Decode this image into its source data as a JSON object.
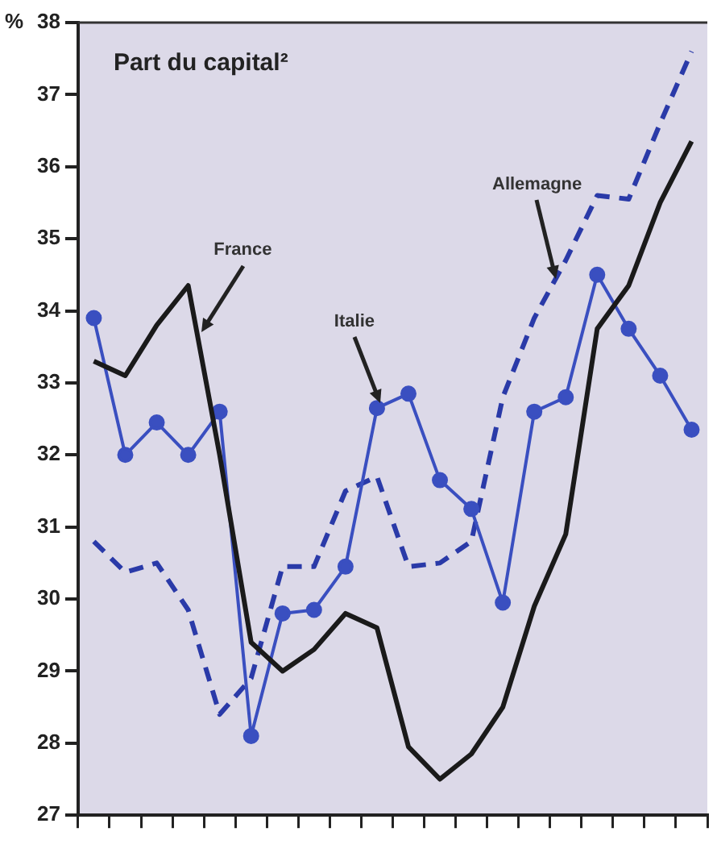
{
  "chart_data": {
    "type": "line",
    "title": "Part du capital²",
    "ylabel": "%",
    "categories": [
      null,
      null,
      null,
      null,
      null,
      null,
      null,
      null,
      null,
      null,
      null,
      null,
      null,
      null,
      null,
      null,
      null,
      null,
      null,
      null
    ],
    "series": [
      {
        "name": "France",
        "color": "#1a1a1a",
        "marker": "none",
        "line_style": "solid",
        "values": [
          33.3,
          33.1,
          33.8,
          34.35,
          32.0,
          29.4,
          29.0,
          29.3,
          29.8,
          29.6,
          27.95,
          27.5,
          27.85,
          28.5,
          29.9,
          30.9,
          33.75,
          34.35,
          35.5,
          36.35
        ]
      },
      {
        "name": "Italie",
        "color": "#3a4fc0",
        "marker": "circle",
        "line_style": "solid",
        "values": [
          33.9,
          32.0,
          32.45,
          32.0,
          32.6,
          28.1,
          29.8,
          29.85,
          30.45,
          32.65,
          32.85,
          31.65,
          31.25,
          29.95,
          32.6,
          32.8,
          34.5,
          33.75,
          33.1,
          32.35
        ]
      },
      {
        "name": "Allemagne",
        "color": "#2a3aa8",
        "marker": "none",
        "line_style": "dashed",
        "values": [
          30.8,
          30.37,
          30.5,
          29.85,
          28.4,
          28.9,
          30.45,
          30.45,
          31.5,
          31.7,
          30.45,
          30.5,
          30.8,
          32.8,
          33.9,
          34.7,
          35.6,
          35.55,
          36.6,
          37.6
        ]
      }
    ],
    "ylim": [
      27,
      38
    ],
    "yticks": [
      27,
      28,
      29,
      30,
      31,
      32,
      33,
      34,
      35,
      36,
      37,
      38
    ],
    "grid": false,
    "legend": false
  }
}
